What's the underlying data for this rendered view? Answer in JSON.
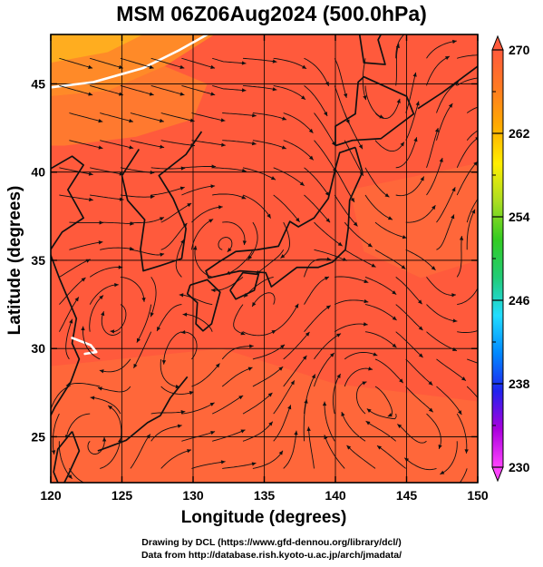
{
  "title": "MSM 06Z06Aug2024 (500.0hPa)",
  "x_axis": {
    "label": "Longitude (degrees)",
    "range": [
      120,
      150
    ],
    "ticks": [
      120,
      125,
      130,
      135,
      140,
      145,
      150
    ],
    "tick_labels": [
      "120",
      "125",
      "130",
      "135",
      "140",
      "145",
      "150"
    ]
  },
  "y_axis": {
    "label": "Latitude  (degrees)",
    "range": [
      22.4,
      47.8
    ],
    "ticks": [
      25,
      30,
      35,
      40,
      45
    ],
    "tick_labels": [
      "25",
      "30",
      "35",
      "40",
      "45"
    ]
  },
  "colorbar": {
    "min": 230,
    "max": 270,
    "tick_values": [
      230,
      238,
      246,
      254,
      262,
      270
    ],
    "tick_labels": [
      "230",
      "238",
      "246",
      "254",
      "262",
      "270"
    ],
    "colors": [
      "#ff44ff",
      "#aa00dd",
      "#2222ee",
      "#0088ff",
      "#22ddff",
      "#22cc77",
      "#33cc22",
      "#aadd22",
      "#ffee00",
      "#ffaa00",
      "#ff7a22",
      "#ff5a3c"
    ]
  },
  "map_colors": {
    "base": "#ff5a3c",
    "warmer": "#ff6a3a",
    "cooler_patch": "#ff8a28",
    "coldest_patch": "#ffb01e",
    "coast": "#111111",
    "streamline": "#111111",
    "contour": "#ffffff"
  },
  "credits": {
    "line1": "Drawing by DCL (https://www.gfd-dennou.org/library/dcl/)",
    "line2": "Data from http://database.rish.kyoto-u.ac.jp/arch/jmadata/"
  }
}
